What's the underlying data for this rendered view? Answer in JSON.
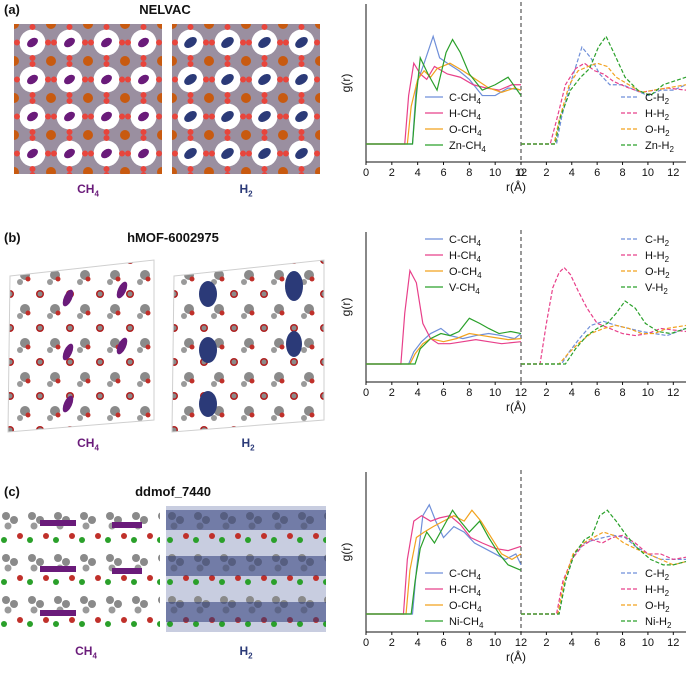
{
  "colors": {
    "CH4_label": "#6a1b7a",
    "H2_label": "#2b3a78",
    "C": "#6f8fd9",
    "H": "#e8408a",
    "O": "#f2a21e",
    "M": "#2aa02a"
  },
  "panels": [
    {
      "label": "(a)",
      "title": "NELVAC",
      "left_image_label": {
        "main": "CH",
        "sub": "4"
      },
      "right_image_label": {
        "main": "H",
        "sub": "2"
      },
      "chart_data": {
        "type": "line",
        "ylabel": "g(r)",
        "xlabel": "r(Å)",
        "xlim_left": [
          0,
          12
        ],
        "xlim_right": [
          0,
          13
        ],
        "xticks_left": [
          "0",
          "2",
          "4",
          "6",
          "8",
          "10",
          "12"
        ],
        "xticks_right": [
          "0",
          "2",
          "4",
          "6",
          "8",
          "10",
          "12"
        ],
        "legend_left": [
          "C-CH4",
          "H-CH4",
          "O-CH4",
          "Zn-CH4"
        ],
        "legend_right": [
          "C-H2",
          "H-H2",
          "O-H2",
          "Zn-H2"
        ],
        "ylim": [
          0,
          1.3
        ],
        "series_left": [
          {
            "name": "C-CH4",
            "x": [
              0,
              3.6,
              3.9,
              4.5,
              5.2,
              5.7,
              6.3,
              7.2,
              8,
              9,
              10,
              11,
              12
            ],
            "y": [
              0,
              0,
              0.55,
              0.75,
              1.0,
              0.8,
              0.75,
              0.68,
              0.6,
              0.45,
              0.45,
              0.52,
              0.5
            ]
          },
          {
            "name": "H-CH4",
            "x": [
              0,
              3.0,
              3.3,
              3.7,
              4.2,
              4.7,
              5.3,
              6.3,
              7.3,
              8.3,
              9.3,
              10.3,
              11.3,
              12
            ],
            "y": [
              0,
              0,
              0.45,
              0.75,
              0.65,
              0.6,
              0.72,
              0.65,
              0.62,
              0.55,
              0.52,
              0.5,
              0.55,
              0.55
            ]
          },
          {
            "name": "O-CH4",
            "x": [
              0,
              3.2,
              3.5,
              4,
              4.5,
              5,
              5.5,
              6.5,
              7.5,
              8.5,
              9.5,
              10.5,
              11.5,
              12
            ],
            "y": [
              0,
              0,
              0.35,
              0.6,
              0.68,
              0.62,
              0.7,
              0.75,
              0.68,
              0.6,
              0.52,
              0.48,
              0.52,
              0.5
            ]
          },
          {
            "name": "Zn-CH4",
            "x": [
              0,
              3.6,
              3.9,
              4.2,
              4.8,
              5.5,
              6.2,
              6.7,
              7.3,
              8,
              9,
              10,
              11,
              12
            ],
            "y": [
              0,
              0,
              0.45,
              0.8,
              0.65,
              0.5,
              0.85,
              0.97,
              0.85,
              0.65,
              0.5,
              0.55,
              0.62,
              0.45
            ]
          }
        ],
        "series_right": [
          {
            "name": "C-H2",
            "x": [
              0,
              2.8,
              3.2,
              4,
              4.8,
              5.5,
              6.2,
              7,
              8,
              9,
              10,
              11,
              12,
              13
            ],
            "y": [
              0,
              0,
              0.25,
              0.6,
              0.9,
              0.8,
              0.65,
              0.55,
              0.55,
              0.5,
              0.45,
              0.5,
              0.5,
              0.55
            ]
          },
          {
            "name": "H-H2",
            "x": [
              0,
              2.3,
              2.8,
              3.5,
              4.3,
              5,
              5.8,
              6.5,
              7.3,
              8.5,
              9.5,
              10.5,
              11.5,
              13
            ],
            "y": [
              0,
              0,
              0.22,
              0.55,
              0.7,
              0.75,
              0.68,
              0.65,
              0.58,
              0.52,
              0.48,
              0.5,
              0.52,
              0.5
            ]
          },
          {
            "name": "O-H2",
            "x": [
              0,
              2.6,
              3,
              3.8,
              4.5,
              5.3,
              6,
              6.8,
              7.5,
              8.5,
              9.5,
              10.5,
              11.5,
              13
            ],
            "y": [
              0,
              0,
              0.22,
              0.55,
              0.68,
              0.72,
              0.75,
              0.72,
              0.62,
              0.55,
              0.48,
              0.5,
              0.52,
              0.55
            ]
          },
          {
            "name": "Zn-H2",
            "x": [
              0,
              2.7,
              3.1,
              3.9,
              4.7,
              5.4,
              6.1,
              6.7,
              7.3,
              8.2,
              9.2,
              10.2,
              11.2,
              13
            ],
            "y": [
              0,
              0,
              0.25,
              0.5,
              0.62,
              0.7,
              0.9,
              1.0,
              0.85,
              0.62,
              0.5,
              0.45,
              0.55,
              0.62
            ]
          }
        ]
      }
    },
    {
      "label": "(b)",
      "title": "hMOF-6002975",
      "left_image_label": {
        "main": "CH",
        "sub": "4"
      },
      "right_image_label": {
        "main": "H",
        "sub": "2"
      },
      "chart_data": {
        "type": "line",
        "ylabel": "g(r)",
        "xlabel": "r(Å)",
        "xlim_left": [
          0,
          12
        ],
        "xlim_right": [
          0,
          13
        ],
        "xticks_left": [
          "0",
          "2",
          "4",
          "6",
          "8",
          "10",
          "12"
        ],
        "xticks_right": [
          "2",
          "4",
          "6",
          "8",
          "10",
          "12"
        ],
        "legend_left": [
          "C-CH4",
          "H-CH4",
          "O-CH4",
          "V-CH4"
        ],
        "legend_right": [
          "C-H2",
          "H-H2",
          "O-H2",
          "V-H2"
        ],
        "ylim": [
          0,
          1.3
        ],
        "series_left": [
          {
            "name": "C-CH4",
            "x": [
              0,
              3.3,
              3.7,
              4.3,
              5,
              5.8,
              6.5,
              7.5,
              8.5,
              9.5,
              10.5,
              11.5,
              12
            ],
            "y": [
              0,
              0,
              0.12,
              0.22,
              0.3,
              0.35,
              0.28,
              0.25,
              0.28,
              0.3,
              0.28,
              0.25,
              0.3
            ]
          },
          {
            "name": "H-CH4",
            "x": [
              0,
              2.7,
              3.0,
              3.4,
              3.9,
              4.4,
              5,
              5.6,
              6.5,
              7.5,
              8.5,
              9.5,
              10.5,
              12
            ],
            "y": [
              0,
              0,
              0.5,
              0.92,
              0.8,
              0.4,
              0.25,
              0.2,
              0.2,
              0.22,
              0.24,
              0.22,
              0.2,
              0.22
            ]
          },
          {
            "name": "O-CH4",
            "x": [
              0,
              3.4,
              3.8,
              4.4,
              5,
              6,
              7,
              8,
              9,
              10,
              11,
              12
            ],
            "y": [
              0,
              0,
              0.1,
              0.2,
              0.25,
              0.22,
              0.25,
              0.3,
              0.28,
              0.26,
              0.24,
              0.25
            ]
          },
          {
            "name": "V-CH4",
            "x": [
              0,
              3.8,
              4.2,
              5,
              5.8,
              6.5,
              7.2,
              8,
              8.8,
              9.5,
              10.3,
              11.2,
              12
            ],
            "y": [
              0,
              0,
              0.15,
              0.25,
              0.3,
              0.28,
              0.32,
              0.45,
              0.4,
              0.35,
              0.3,
              0.32,
              0.3
            ]
          }
        ],
        "series_right": [
          {
            "name": "C-H2",
            "x": [
              0,
              3.2,
              3.8,
              4.6,
              5.5,
              6.5,
              7.5,
              8.5,
              9.5,
              10.5,
              11.5,
              13
            ],
            "y": [
              0,
              0,
              0.12,
              0.25,
              0.38,
              0.42,
              0.38,
              0.35,
              0.32,
              0.3,
              0.28,
              0.35
            ]
          },
          {
            "name": "H-H2",
            "x": [
              0,
              1.5,
              2,
              2.5,
              3,
              3.4,
              3.9,
              4.5,
              5.2,
              6,
              7,
              8,
              9,
              10,
              11,
              13
            ],
            "y": [
              0,
              0,
              0.4,
              0.75,
              0.9,
              0.95,
              0.88,
              0.72,
              0.55,
              0.4,
              0.35,
              0.3,
              0.28,
              0.3,
              0.35,
              0.32
            ]
          },
          {
            "name": "O-H2",
            "x": [
              0,
              3,
              3.7,
              4.5,
              5.5,
              6.5,
              7.5,
              8.5,
              9.5,
              10.5,
              11.5,
              13
            ],
            "y": [
              0,
              0,
              0.1,
              0.2,
              0.3,
              0.35,
              0.38,
              0.35,
              0.3,
              0.3,
              0.35,
              0.38
            ]
          },
          {
            "name": "V-H2",
            "x": [
              0,
              3.5,
              4.3,
              5.2,
              6,
              6.8,
              7.5,
              8.2,
              9,
              9.8,
              10.8,
              11.8,
              13
            ],
            "y": [
              0,
              0,
              0.15,
              0.28,
              0.35,
              0.4,
              0.5,
              0.62,
              0.55,
              0.4,
              0.32,
              0.3,
              0.35
            ]
          }
        ]
      }
    },
    {
      "label": "(c)",
      "title": "ddmof_7440",
      "left_image_label": {
        "main": "CH",
        "sub": "4"
      },
      "right_image_label": {
        "main": "H",
        "sub": "2"
      },
      "chart_data": {
        "type": "line",
        "ylabel": "g(r)",
        "xlabel": "r(Å)",
        "xlim_left": [
          0,
          12
        ],
        "xlim_right": [
          0,
          13
        ],
        "xticks_left": [
          "0",
          "2",
          "4",
          "6",
          "8",
          "10",
          "12"
        ],
        "xticks_right": [
          "2",
          "4",
          "6",
          "8",
          "10",
          "12"
        ],
        "legend_left": [
          "C-CH4",
          "H-CH4",
          "O-CH4",
          "Ni-CH4"
        ],
        "legend_right": [
          "C-H2",
          "H-H2",
          "O-H2",
          "Ni-H2"
        ],
        "ylim": [
          0,
          1.3
        ],
        "series_left": [
          {
            "name": "C-CH4",
            "x": [
              0,
              3.6,
              3.9,
              4.4,
              4.9,
              5.4,
              6,
              6.8,
              7.6,
              8.4,
              9.2,
              10,
              10.8,
              11.6,
              12
            ],
            "y": [
              0,
              0,
              0.4,
              0.9,
              1.0,
              0.85,
              0.7,
              0.8,
              0.75,
              0.65,
              0.6,
              0.55,
              0.5,
              0.55,
              0.45
            ]
          },
          {
            "name": "H-CH4",
            "x": [
              0,
              2.9,
              3.2,
              3.7,
              4.3,
              5,
              5.7,
              6.5,
              7.3,
              8.1,
              9,
              10,
              11,
              12
            ],
            "y": [
              0,
              0,
              0.5,
              0.85,
              0.9,
              0.85,
              0.88,
              0.9,
              0.82,
              0.7,
              0.65,
              0.6,
              0.58,
              0.62
            ]
          },
          {
            "name": "O-CH4",
            "x": [
              0,
              3.1,
              3.4,
              3.9,
              4.5,
              5.2,
              6,
              6.8,
              7.6,
              8.2,
              8.9,
              9.7,
              10.5,
              11.3,
              12
            ],
            "y": [
              0,
              0,
              0.4,
              0.7,
              0.75,
              0.8,
              0.85,
              0.9,
              0.85,
              0.95,
              0.85,
              0.7,
              0.55,
              0.5,
              0.55
            ]
          },
          {
            "name": "Ni-CH4",
            "x": [
              0,
              3.5,
              3.8,
              4.2,
              4.7,
              5.3,
              6,
              6.7,
              7.3,
              8,
              8.8,
              9.5,
              10.3,
              11,
              12
            ],
            "y": [
              0,
              0,
              0.3,
              0.6,
              0.75,
              0.65,
              0.8,
              0.95,
              0.85,
              0.75,
              0.85,
              0.7,
              0.55,
              0.45,
              0.4
            ]
          }
        ],
        "series_right": [
          {
            "name": "C-H2",
            "x": [
              0,
              3,
              3.5,
              4.2,
              5,
              5.8,
              6.5,
              7.3,
              8.2,
              9,
              10,
              11,
              12,
              13
            ],
            "y": [
              0,
              0,
              0.3,
              0.55,
              0.65,
              0.68,
              0.7,
              0.72,
              0.7,
              0.62,
              0.55,
              0.5,
              0.5,
              0.5
            ]
          },
          {
            "name": "H-H2",
            "x": [
              0,
              2.8,
              3.3,
              4,
              4.8,
              5.6,
              6.4,
              7.2,
              8,
              9,
              10,
              11,
              12,
              13
            ],
            "y": [
              0,
              0,
              0.3,
              0.5,
              0.62,
              0.68,
              0.65,
              0.7,
              0.72,
              0.65,
              0.55,
              0.55,
              0.5,
              0.52
            ]
          },
          {
            "name": "O-H2",
            "x": [
              0,
              2.9,
              3.4,
              4.1,
              4.9,
              5.7,
              6.5,
              7.3,
              8.1,
              9,
              10,
              11,
              12,
              13
            ],
            "y": [
              0,
              0,
              0.3,
              0.55,
              0.65,
              0.7,
              0.75,
              0.72,
              0.65,
              0.6,
              0.55,
              0.5,
              0.45,
              0.48
            ]
          },
          {
            "name": "Ni-H2",
            "x": [
              0,
              3,
              3.5,
              4.2,
              5,
              5.6,
              6.2,
              6.8,
              7.5,
              8.3,
              9.2,
              10.2,
              11.2,
              12,
              13
            ],
            "y": [
              0,
              0,
              0.3,
              0.55,
              0.68,
              0.72,
              0.9,
              0.95,
              0.85,
              0.72,
              0.6,
              0.5,
              0.45,
              0.45,
              0.48
            ]
          }
        ]
      }
    }
  ]
}
